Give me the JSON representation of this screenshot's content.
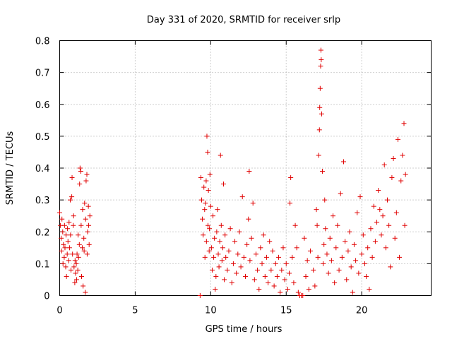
{
  "chart_data": {
    "type": "scatter",
    "title": "Day 331 of 2020, SRMTID for receiver srlp",
    "xlabel": "GPS time / hours",
    "ylabel": "SRMTID / TECUs",
    "xlim": [
      0,
      24.6
    ],
    "ylim": [
      0,
      0.8
    ],
    "x_ticks": [
      0,
      5,
      10,
      15,
      20
    ],
    "x_tick_labels": [
      "0",
      "5",
      "10",
      "15",
      "20"
    ],
    "y_ticks": [
      0,
      0.1,
      0.2,
      0.3,
      0.4,
      0.5,
      0.6,
      0.7,
      0.8
    ],
    "y_tick_labels": [
      "0",
      "0.1",
      "0.2",
      "0.3",
      "0.4",
      "0.5",
      "0.6",
      "0.7",
      "0.8"
    ],
    "grid": true,
    "marker": "plus",
    "marker_color": "#e00000",
    "series": [
      {
        "name": "SRMTID",
        "points": [
          [
            0.0,
            0.26
          ],
          [
            0.05,
            0.22
          ],
          [
            0.1,
            0.18
          ],
          [
            0.12,
            0.14
          ],
          [
            0.15,
            0.24
          ],
          [
            0.2,
            0.2
          ],
          [
            0.22,
            0.1
          ],
          [
            0.25,
            0.16
          ],
          [
            0.3,
            0.12
          ],
          [
            0.32,
            0.22
          ],
          [
            0.35,
            0.15
          ],
          [
            0.4,
            0.09
          ],
          [
            0.42,
            0.19
          ],
          [
            0.45,
            0.06
          ],
          [
            0.5,
            0.13
          ],
          [
            0.52,
            0.21
          ],
          [
            0.55,
            0.17
          ],
          [
            0.6,
            0.11
          ],
          [
            0.62,
            0.23
          ],
          [
            0.65,
            0.15
          ],
          [
            0.7,
            0.3
          ],
          [
            0.72,
            0.19
          ],
          [
            0.75,
            0.08
          ],
          [
            0.8,
            0.31
          ],
          [
            0.82,
            0.37
          ],
          [
            0.85,
            0.13
          ],
          [
            0.9,
            0.22
          ],
          [
            0.92,
            0.25
          ],
          [
            0.95,
            0.09
          ],
          [
            1.0,
            0.04
          ],
          [
            1.02,
            0.11
          ],
          [
            1.05,
            0.07
          ],
          [
            1.1,
            0.1
          ],
          [
            1.12,
            0.05
          ],
          [
            1.15,
            0.13
          ],
          [
            1.2,
            0.08
          ],
          [
            1.22,
            0.19
          ],
          [
            1.25,
            0.12
          ],
          [
            1.3,
            0.16
          ],
          [
            1.32,
            0.35
          ],
          [
            1.35,
            0.4
          ],
          [
            1.4,
            0.39
          ],
          [
            1.42,
            0.22
          ],
          [
            1.45,
            0.06
          ],
          [
            1.5,
            0.15
          ],
          [
            1.52,
            0.27
          ],
          [
            1.55,
            0.03
          ],
          [
            1.6,
            0.18
          ],
          [
            1.62,
            0.14
          ],
          [
            1.65,
            0.29
          ],
          [
            1.7,
            0.01
          ],
          [
            1.72,
            0.24
          ],
          [
            1.75,
            0.36
          ],
          [
            1.8,
            0.38
          ],
          [
            1.82,
            0.13
          ],
          [
            1.85,
            0.2
          ],
          [
            1.9,
            0.28
          ],
          [
            1.92,
            0.22
          ],
          [
            1.95,
            0.16
          ],
          [
            2.0,
            0.25
          ],
          [
            9.3,
            0.0
          ],
          [
            9.35,
            0.37
          ],
          [
            9.4,
            0.3
          ],
          [
            9.45,
            0.24
          ],
          [
            9.5,
            0.19
          ],
          [
            9.55,
            0.34
          ],
          [
            9.6,
            0.27
          ],
          [
            9.62,
            0.12
          ],
          [
            9.65,
            0.29
          ],
          [
            9.7,
            0.36
          ],
          [
            9.72,
            0.17
          ],
          [
            9.75,
            0.5
          ],
          [
            9.8,
            0.45
          ],
          [
            9.82,
            0.22
          ],
          [
            9.85,
            0.33
          ],
          [
            9.9,
            0.14
          ],
          [
            9.92,
            0.21
          ],
          [
            9.95,
            0.38
          ],
          [
            10.0,
            0.28
          ],
          [
            10.05,
            0.15
          ],
          [
            10.1,
            0.08
          ],
          [
            10.15,
            0.25
          ],
          [
            10.2,
            0.12
          ],
          [
            10.25,
            0.18
          ],
          [
            10.3,
            0.02
          ],
          [
            10.35,
            0.06
          ],
          [
            10.4,
            0.2
          ],
          [
            10.45,
            0.27
          ],
          [
            10.5,
            0.13
          ],
          [
            10.55,
            0.09
          ],
          [
            10.6,
            0.17
          ],
          [
            10.65,
            0.44
          ],
          [
            10.7,
            0.22
          ],
          [
            10.75,
            0.11
          ],
          [
            10.8,
            0.15
          ],
          [
            10.85,
            0.35
          ],
          [
            10.9,
            0.05
          ],
          [
            10.95,
            0.19
          ],
          [
            11.0,
            0.12
          ],
          [
            11.1,
            0.08
          ],
          [
            11.2,
            0.14
          ],
          [
            11.3,
            0.21
          ],
          [
            11.4,
            0.04
          ],
          [
            11.5,
            0.1
          ],
          [
            11.6,
            0.17
          ],
          [
            11.7,
            0.07
          ],
          [
            11.8,
            0.13
          ],
          [
            11.9,
            0.2
          ],
          [
            12.0,
            0.09
          ],
          [
            12.1,
            0.31
          ],
          [
            12.2,
            0.12
          ],
          [
            12.3,
            0.06
          ],
          [
            12.4,
            0.16
          ],
          [
            12.5,
            0.24
          ],
          [
            12.55,
            0.39
          ],
          [
            12.6,
            0.11
          ],
          [
            12.7,
            0.18
          ],
          [
            12.8,
            0.29
          ],
          [
            12.9,
            0.05
          ],
          [
            13.0,
            0.13
          ],
          [
            13.1,
            0.08
          ],
          [
            13.2,
            0.02
          ],
          [
            13.3,
            0.15
          ],
          [
            13.4,
            0.1
          ],
          [
            13.5,
            0.19
          ],
          [
            13.6,
            0.06
          ],
          [
            13.7,
            0.12
          ],
          [
            13.8,
            0.04
          ],
          [
            13.9,
            0.17
          ],
          [
            14.0,
            0.08
          ],
          [
            14.1,
            0.14
          ],
          [
            14.2,
            0.03
          ],
          [
            14.3,
            0.1
          ],
          [
            14.4,
            0.06
          ],
          [
            14.5,
            0.12
          ],
          [
            14.6,
            0.01
          ],
          [
            14.7,
            0.08
          ],
          [
            14.8,
            0.15
          ],
          [
            14.9,
            0.05
          ],
          [
            15.0,
            0.1
          ],
          [
            15.1,
            0.02
          ],
          [
            15.2,
            0.07
          ],
          [
            15.25,
            0.29
          ],
          [
            15.3,
            0.37
          ],
          [
            15.4,
            0.12
          ],
          [
            15.5,
            0.04
          ],
          [
            15.6,
            0.22
          ],
          [
            15.7,
            0.15
          ],
          [
            15.8,
            0.01
          ],
          [
            15.9,
            0.0
          ],
          [
            16.0,
            0.0
          ],
          [
            16.1,
            0.0
          ],
          [
            16.2,
            0.18
          ],
          [
            16.3,
            0.06
          ],
          [
            16.4,
            0.11
          ],
          [
            16.5,
            0.02
          ],
          [
            16.6,
            0.14
          ],
          [
            16.8,
            0.08
          ],
          [
            16.9,
            0.03
          ],
          [
            17.0,
            0.27
          ],
          [
            17.05,
            0.22
          ],
          [
            17.1,
            0.12
          ],
          [
            17.15,
            0.44
          ],
          [
            17.2,
            0.52
          ],
          [
            17.22,
            0.59
          ],
          [
            17.25,
            0.65
          ],
          [
            17.28,
            0.72
          ],
          [
            17.3,
            0.77
          ],
          [
            17.32,
            0.74
          ],
          [
            17.35,
            0.57
          ],
          [
            17.4,
            0.39
          ],
          [
            17.45,
            0.1
          ],
          [
            17.5,
            0.16
          ],
          [
            17.55,
            0.3
          ],
          [
            17.6,
            0.21
          ],
          [
            17.7,
            0.13
          ],
          [
            17.8,
            0.07
          ],
          [
            17.9,
            0.18
          ],
          [
            18.0,
            0.11
          ],
          [
            18.1,
            0.25
          ],
          [
            18.2,
            0.04
          ],
          [
            18.3,
            0.15
          ],
          [
            18.4,
            0.22
          ],
          [
            18.5,
            0.08
          ],
          [
            18.6,
            0.32
          ],
          [
            18.7,
            0.12
          ],
          [
            18.8,
            0.42
          ],
          [
            18.9,
            0.17
          ],
          [
            19.0,
            0.05
          ],
          [
            19.1,
            0.14
          ],
          [
            19.2,
            0.2
          ],
          [
            19.3,
            0.09
          ],
          [
            19.4,
            0.01
          ],
          [
            19.5,
            0.16
          ],
          [
            19.6,
            0.11
          ],
          [
            19.7,
            0.26
          ],
          [
            19.8,
            0.07
          ],
          [
            19.9,
            0.31
          ],
          [
            20.0,
            0.13
          ],
          [
            20.1,
            0.19
          ],
          [
            20.2,
            0.1
          ],
          [
            20.3,
            0.06
          ],
          [
            20.4,
            0.15
          ],
          [
            20.5,
            0.02
          ],
          [
            20.6,
            0.21
          ],
          [
            20.7,
            0.12
          ],
          [
            20.8,
            0.28
          ],
          [
            20.9,
            0.17
          ],
          [
            21.0,
            0.23
          ],
          [
            21.1,
            0.33
          ],
          [
            21.2,
            0.27
          ],
          [
            21.3,
            0.19
          ],
          [
            21.4,
            0.25
          ],
          [
            21.5,
            0.41
          ],
          [
            21.6,
            0.15
          ],
          [
            21.7,
            0.3
          ],
          [
            21.8,
            0.22
          ],
          [
            21.9,
            0.09
          ],
          [
            22.0,
            0.37
          ],
          [
            22.1,
            0.43
          ],
          [
            22.2,
            0.18
          ],
          [
            22.3,
            0.26
          ],
          [
            22.4,
            0.49
          ],
          [
            22.5,
            0.12
          ],
          [
            22.6,
            0.36
          ],
          [
            22.7,
            0.44
          ],
          [
            22.8,
            0.54
          ],
          [
            22.85,
            0.22
          ],
          [
            22.9,
            0.38
          ]
        ]
      }
    ]
  }
}
